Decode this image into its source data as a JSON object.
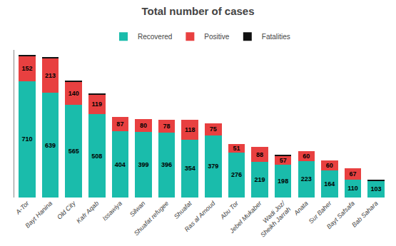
{
  "chart_data": {
    "type": "bar",
    "stacked": true,
    "title": "Total number of cases",
    "categories": [
      "A-Tor",
      "Bayt Hanina",
      "Old City",
      "Kafr Aqab",
      "Issawiya",
      "Silwan",
      "Shuafat refugee",
      "Shuafat",
      "Ras al Amoud",
      "Abu Tor",
      "Jebel Mukaber",
      "Wadi Joz/\nSheikh Jarrah",
      "Anata",
      "Sur Baher",
      "Bayt Safsafa",
      "Bab Sahara"
    ],
    "series": [
      {
        "name": "Recovered",
        "color": "#1abcab",
        "data_labels": true,
        "values": [
          710,
          639,
          565,
          508,
          404,
          399,
          396,
          354,
          379,
          276,
          219,
          198,
          223,
          164,
          110,
          103
        ]
      },
      {
        "name": "Positive",
        "color": "#e84040",
        "data_labels": true,
        "values": [
          152,
          213,
          140,
          119,
          87,
          80,
          78,
          118,
          75,
          51,
          88,
          57,
          60,
          60,
          67,
          0
        ]
      },
      {
        "name": "Fatalities",
        "color": "#111111",
        "data_labels": false,
        "values": [
          5,
          5,
          5,
          5,
          0,
          0,
          0,
          0,
          0,
          0,
          0,
          5,
          0,
          0,
          0,
          5
        ]
      }
    ],
    "ylim": [
      0,
      900
    ],
    "grid": false,
    "tick_labels": "x",
    "legend": "top"
  }
}
